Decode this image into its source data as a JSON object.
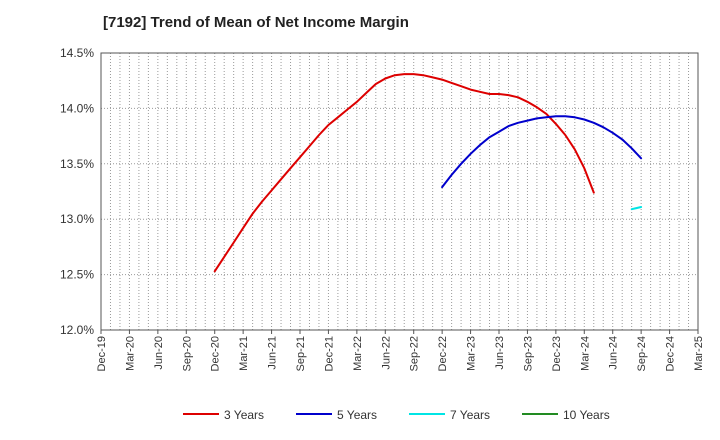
{
  "chart_data": {
    "type": "line",
    "title": "[7192]  Trend of Mean of Net Income Margin",
    "xlabel": "",
    "ylabel": "",
    "ylim": [
      12.0,
      14.5
    ],
    "y_ticks": [
      "12.0%",
      "12.5%",
      "13.0%",
      "13.5%",
      "14.0%",
      "14.5%"
    ],
    "x_ticks": [
      "Dec-19",
      "Mar-20",
      "Jun-20",
      "Sep-20",
      "Dec-20",
      "Mar-21",
      "Jun-21",
      "Sep-21",
      "Dec-21",
      "Mar-22",
      "Jun-22",
      "Sep-22",
      "Dec-22",
      "Mar-23",
      "Jun-23",
      "Sep-23",
      "Dec-23",
      "Mar-24",
      "Jun-24",
      "Sep-24",
      "Dec-24",
      "Mar-25"
    ],
    "grid": true,
    "legend_position": "bottom",
    "series": [
      {
        "name": "3 Years",
        "color": "#dd0000",
        "start_index": 12,
        "values": [
          12.53,
          12.66,
          12.79,
          12.92,
          13.05,
          13.16,
          13.26,
          13.36,
          13.46,
          13.56,
          13.66,
          13.76,
          13.85,
          13.92,
          13.99,
          14.06,
          14.14,
          14.22,
          14.27,
          14.3,
          14.31,
          14.31,
          14.3,
          14.28,
          14.26,
          14.23,
          14.2,
          14.17,
          14.15,
          14.13,
          14.13,
          14.12,
          14.1,
          14.06,
          14.01,
          13.95,
          13.86,
          13.76,
          13.63,
          13.46,
          13.24
        ]
      },
      {
        "name": "5 Years",
        "color": "#0000cc",
        "start_index": 36,
        "values": [
          13.29,
          13.4,
          13.5,
          13.59,
          13.67,
          13.74,
          13.79,
          13.84,
          13.87,
          13.89,
          13.91,
          13.92,
          13.93,
          13.93,
          13.92,
          13.9,
          13.87,
          13.83,
          13.78,
          13.72,
          13.64,
          13.55
        ]
      },
      {
        "name": "7 Years",
        "color": "#00e5e5",
        "start_index": 56,
        "values": [
          13.09,
          13.11
        ]
      },
      {
        "name": "10 Years",
        "color": "#228b22",
        "start_index": 0,
        "values": []
      }
    ]
  }
}
